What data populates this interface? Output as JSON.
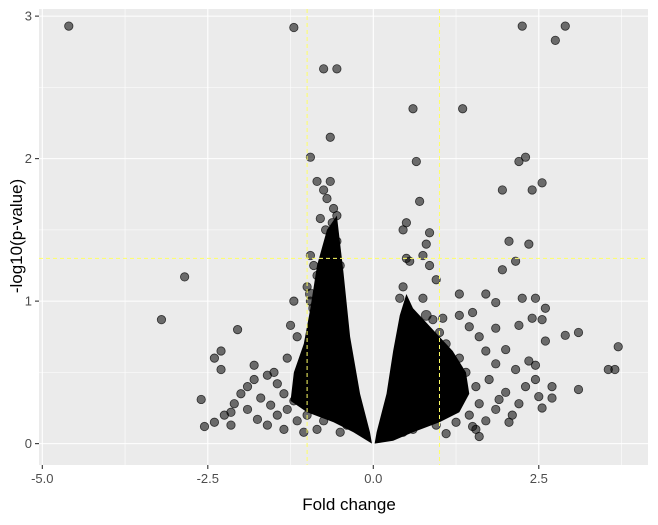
{
  "chart_data": {
    "type": "scatter",
    "title": "",
    "xlabel": "Fold change",
    "ylabel": "-log10(p-value)",
    "xlim": [
      -5.05,
      4.15
    ],
    "ylim": [
      -0.15,
      3.05
    ],
    "x_ticks": [
      -5.0,
      -2.5,
      0.0,
      2.5
    ],
    "x_tick_labels": [
      "-5.0",
      "-2.5",
      "0.0",
      "2.5"
    ],
    "y_ticks": [
      0,
      1,
      2,
      3
    ],
    "y_tick_labels": [
      "0",
      "1",
      "2",
      "3"
    ],
    "grid": true,
    "legend": "none",
    "point_color": "#000000",
    "point_opacity": 0.55,
    "panel_background": "#ebebeb",
    "gridline_color": "#ffffff",
    "threshold_color": "#ffff66",
    "thresholds": {
      "x": [
        -1,
        1
      ],
      "y": 1.3
    },
    "points": [
      [
        -4.6,
        2.93
      ],
      [
        -1.2,
        2.92
      ],
      [
        2.25,
        2.93
      ],
      [
        2.9,
        2.93
      ],
      [
        2.75,
        2.83
      ],
      [
        -0.75,
        2.63
      ],
      [
        -0.55,
        2.63
      ],
      [
        0.6,
        2.35
      ],
      [
        1.35,
        2.35
      ],
      [
        -0.65,
        2.15
      ],
      [
        2.3,
        2.01
      ],
      [
        2.2,
        1.98
      ],
      [
        0.65,
        1.98
      ],
      [
        -0.95,
        2.01
      ],
      [
        -0.85,
        1.84
      ],
      [
        -0.65,
        1.84
      ],
      [
        1.95,
        1.78
      ],
      [
        2.4,
        1.78
      ],
      [
        2.55,
        1.83
      ],
      [
        -0.75,
        1.78
      ],
      [
        -0.7,
        1.72
      ],
      [
        0.7,
        1.7
      ],
      [
        -0.6,
        1.65
      ],
      [
        -0.55,
        1.6
      ],
      [
        -0.8,
        1.58
      ],
      [
        -0.62,
        1.55
      ],
      [
        0.5,
        1.55
      ],
      [
        -0.72,
        1.5
      ],
      [
        0.45,
        1.5
      ],
      [
        -0.6,
        1.47
      ],
      [
        0.85,
        1.48
      ],
      [
        -0.55,
        1.42
      ],
      [
        2.05,
        1.42
      ],
      [
        2.35,
        1.4
      ],
      [
        0.8,
        1.4
      ],
      [
        -0.68,
        1.35
      ],
      [
        -0.95,
        1.32
      ],
      [
        -0.62,
        1.3
      ],
      [
        0.5,
        1.3
      ],
      [
        0.55,
        1.28
      ],
      [
        0.75,
        1.32
      ],
      [
        2.15,
        1.28
      ],
      [
        0.85,
        1.25
      ],
      [
        -0.9,
        1.25
      ],
      [
        1.95,
        1.22
      ],
      [
        -0.5,
        1.25
      ],
      [
        -2.85,
        1.17
      ],
      [
        0.95,
        1.15
      ],
      [
        -0.85,
        1.18
      ],
      [
        0.45,
        1.1
      ],
      [
        -0.55,
        1.12
      ],
      [
        -1.0,
        1.1
      ],
      [
        1.3,
        1.05
      ],
      [
        2.25,
        1.02
      ],
      [
        2.45,
        1.02
      ],
      [
        1.7,
        1.05
      ],
      [
        0.75,
        1.02
      ],
      [
        -0.95,
        1.0
      ],
      [
        -1.2,
        1.0
      ],
      [
        0.4,
        1.02
      ],
      [
        1.85,
        0.99
      ],
      [
        -0.6,
        0.98
      ],
      [
        2.6,
        0.95
      ],
      [
        1.5,
        0.92
      ],
      [
        -0.8,
        0.92
      ],
      [
        0.55,
        0.92
      ],
      [
        1.3,
        0.9
      ],
      [
        2.4,
        0.88
      ],
      [
        1.05,
        0.88
      ],
      [
        -3.2,
        0.87
      ],
      [
        2.55,
        0.87
      ],
      [
        0.9,
        0.87
      ],
      [
        -1.25,
        0.83
      ],
      [
        -0.75,
        0.85
      ],
      [
        2.2,
        0.83
      ],
      [
        -2.05,
        0.8
      ],
      [
        1.45,
        0.82
      ],
      [
        1.85,
        0.81
      ],
      [
        0.45,
        0.82
      ],
      [
        3.1,
        0.78
      ],
      [
        2.9,
        0.76
      ],
      [
        1.0,
        0.78
      ],
      [
        -1.15,
        0.75
      ],
      [
        1.6,
        0.75
      ],
      [
        0.8,
        0.77
      ],
      [
        -0.5,
        0.8
      ],
      [
        2.6,
        0.72
      ],
      [
        1.1,
        0.7
      ],
      [
        -0.9,
        0.72
      ],
      [
        3.7,
        0.68
      ],
      [
        -2.3,
        0.65
      ],
      [
        2.0,
        0.66
      ],
      [
        1.7,
        0.65
      ],
      [
        0.6,
        0.68
      ],
      [
        -0.7,
        0.65
      ],
      [
        -2.4,
        0.6
      ],
      [
        -1.3,
        0.6
      ],
      [
        2.35,
        0.58
      ],
      [
        1.3,
        0.6
      ],
      [
        -1.0,
        0.58
      ],
      [
        0.95,
        0.6
      ],
      [
        -1.8,
        0.55
      ],
      [
        2.45,
        0.55
      ],
      [
        1.85,
        0.56
      ],
      [
        -0.6,
        0.56
      ],
      [
        0.5,
        0.55
      ],
      [
        3.55,
        0.52
      ],
      [
        3.65,
        0.52
      ],
      [
        -2.3,
        0.52
      ],
      [
        -1.5,
        0.5
      ],
      [
        2.15,
        0.52
      ],
      [
        1.4,
        0.5
      ],
      [
        -0.85,
        0.5
      ],
      [
        0.75,
        0.5
      ],
      [
        -1.6,
        0.48
      ],
      [
        -1.8,
        0.45
      ],
      [
        2.45,
        0.45
      ],
      [
        1.75,
        0.45
      ],
      [
        -1.1,
        0.45
      ],
      [
        0.4,
        0.46
      ],
      [
        1.05,
        0.44
      ],
      [
        -0.55,
        0.43
      ],
      [
        2.7,
        0.4
      ],
      [
        -1.9,
        0.4
      ],
      [
        -1.45,
        0.42
      ],
      [
        2.3,
        0.4
      ],
      [
        1.55,
        0.4
      ],
      [
        0.7,
        0.41
      ],
      [
        -0.75,
        0.4
      ],
      [
        3.1,
        0.38
      ],
      [
        -2.0,
        0.35
      ],
      [
        -1.35,
        0.35
      ],
      [
        2.0,
        0.36
      ],
      [
        1.2,
        0.36
      ],
      [
        -1.05,
        0.36
      ],
      [
        0.5,
        0.37
      ],
      [
        -0.5,
        0.38
      ],
      [
        2.5,
        0.33
      ],
      [
        2.7,
        0.32
      ],
      [
        -2.6,
        0.31
      ],
      [
        -1.7,
        0.32
      ],
      [
        1.9,
        0.31
      ],
      [
        -1.2,
        0.3
      ],
      [
        0.9,
        0.32
      ],
      [
        -0.7,
        0.3
      ],
      [
        -2.1,
        0.28
      ],
      [
        2.2,
        0.28
      ],
      [
        1.6,
        0.28
      ],
      [
        1.3,
        0.3
      ],
      [
        -1.55,
        0.27
      ],
      [
        -0.9,
        0.27
      ],
      [
        0.6,
        0.28
      ],
      [
        2.55,
        0.25
      ],
      [
        -2.15,
        0.22
      ],
      [
        -1.9,
        0.24
      ],
      [
        1.85,
        0.24
      ],
      [
        -1.3,
        0.24
      ],
      [
        1.1,
        0.24
      ],
      [
        0.45,
        0.23
      ],
      [
        -0.55,
        0.23
      ],
      [
        -2.25,
        0.2
      ],
      [
        -1.45,
        0.2
      ],
      [
        2.1,
        0.2
      ],
      [
        1.45,
        0.2
      ],
      [
        -1.0,
        0.2
      ],
      [
        0.8,
        0.2
      ],
      [
        -2.4,
        0.15
      ],
      [
        -1.75,
        0.17
      ],
      [
        1.7,
        0.16
      ],
      [
        -1.15,
        0.16
      ],
      [
        2.05,
        0.15
      ],
      [
        -0.75,
        0.16
      ],
      [
        1.25,
        0.15
      ],
      [
        -2.55,
        0.12
      ],
      [
        -2.15,
        0.13
      ],
      [
        -1.6,
        0.13
      ],
      [
        1.5,
        0.12
      ],
      [
        0.95,
        0.13
      ],
      [
        -0.4,
        0.13
      ],
      [
        0.35,
        0.13
      ],
      [
        -1.35,
        0.1
      ],
      [
        1.6,
        0.05
      ],
      [
        1.55,
        0.1
      ],
      [
        -0.85,
        0.1
      ],
      [
        0.6,
        0.1
      ],
      [
        -1.05,
        0.08
      ],
      [
        -0.5,
        0.08
      ],
      [
        0.45,
        0.08
      ],
      [
        1.1,
        0.07
      ]
    ],
    "core_density_note_points": [
      [
        -0.95,
        1.05
      ],
      [
        -0.9,
        0.95
      ],
      [
        -0.85,
        0.85
      ],
      [
        -0.8,
        0.75
      ],
      [
        -0.75,
        0.65
      ],
      [
        -0.7,
        0.55
      ],
      [
        -0.65,
        0.45
      ],
      [
        -0.6,
        0.35
      ],
      [
        -0.55,
        0.25
      ],
      [
        -0.5,
        0.18
      ],
      [
        0.4,
        0.18
      ],
      [
        0.45,
        0.25
      ],
      [
        0.5,
        0.35
      ],
      [
        0.55,
        0.45
      ],
      [
        0.6,
        0.55
      ],
      [
        0.65,
        0.65
      ],
      [
        0.7,
        0.72
      ],
      [
        0.75,
        0.8
      ],
      [
        0.8,
        0.9
      ]
    ]
  }
}
